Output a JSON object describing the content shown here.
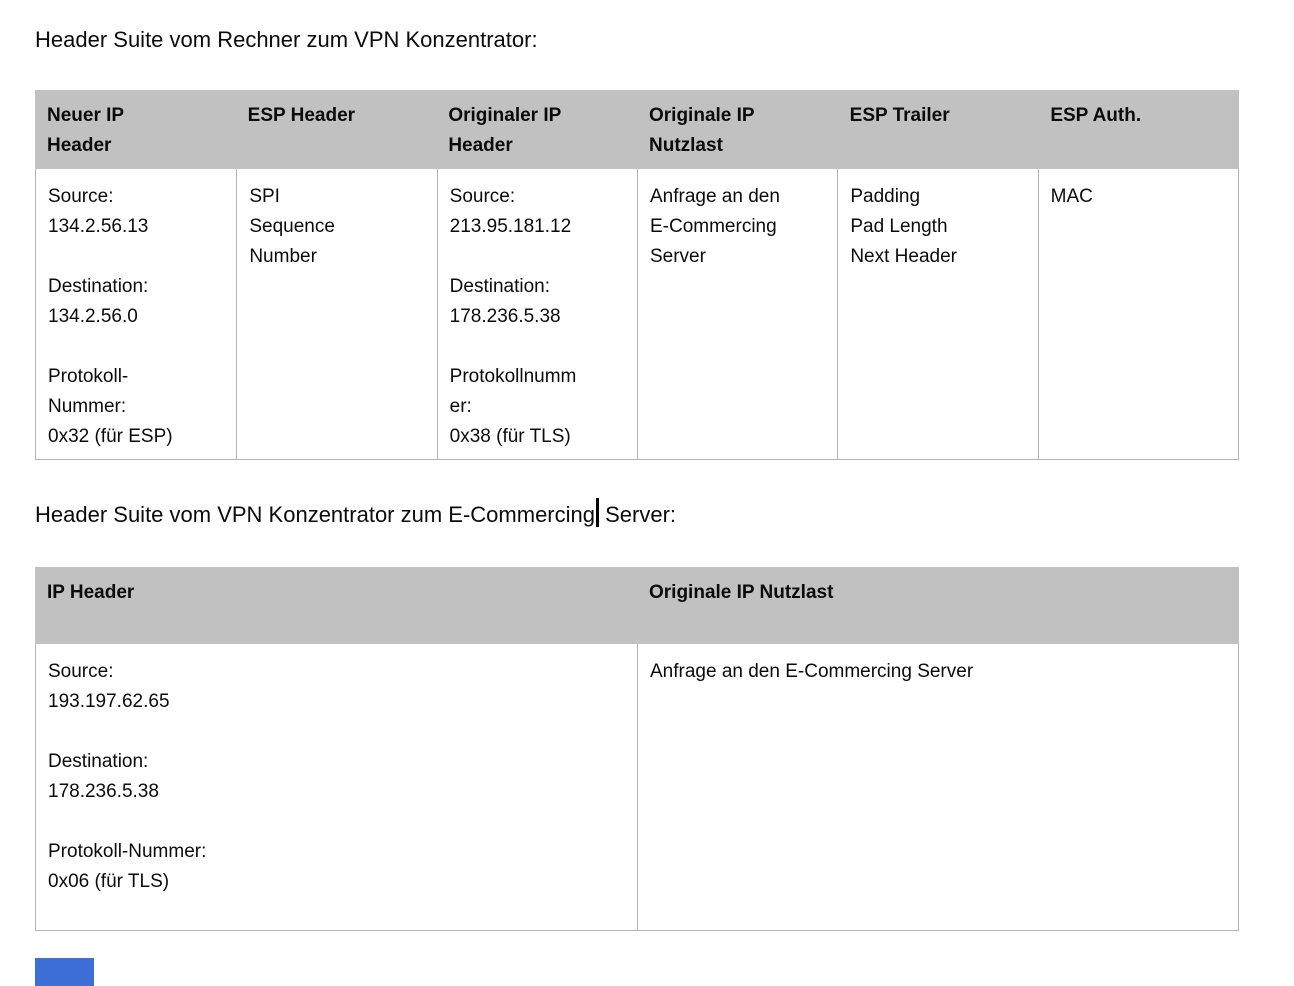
{
  "s1": {
    "title": "Header Suite vom Rechner zum VPN Konzentrator:",
    "headers": [
      "Neuer IP\nHeader",
      "ESP Header",
      "Originaler IP\nHeader",
      "Originale IP\nNutzlast",
      "ESP Trailer",
      "ESP Auth."
    ],
    "cells": [
      "Source:\n134.2.56.13\n\nDestination:\n134.2.56.0\n\nProtokoll-\nNummer:\n0x32 (für ESP)",
      "SPI\nSequence\nNumber",
      "Source:\n213.95.181.12\n\nDestination:\n178.236.5.38\n\nProtokollnumm\ner:\n0x38 (für TLS)",
      "Anfrage an den\nE-Commercing\nServer",
      "Padding\nPad Length\nNext Header",
      "MAC"
    ]
  },
  "s2": {
    "title_before_caret": "Header Suite vom VPN Konzentrator zum E-Commercing",
    "title_after_caret": " Server:",
    "headers": [
      "IP Header",
      "Originale IP Nutzlast"
    ],
    "cells": [
      "Source:\n193.197.62.65\n\nDestination:\n178.236.5.38\n\nProtokoll-Nummer:\n0x06 (für TLS)",
      "Anfrage an den E-Commercing Server"
    ]
  },
  "ui": {
    "caret_icon": "text-insertion-caret",
    "selection_icon": "selection-highlight-block",
    "colors": {
      "table_header_bg": "#c1c1c1",
      "table_border": "#b3b3b3",
      "text": "#0b0b0b",
      "selection_blue": "#3e6fd8",
      "page_bg": "#ffffff"
    }
  }
}
